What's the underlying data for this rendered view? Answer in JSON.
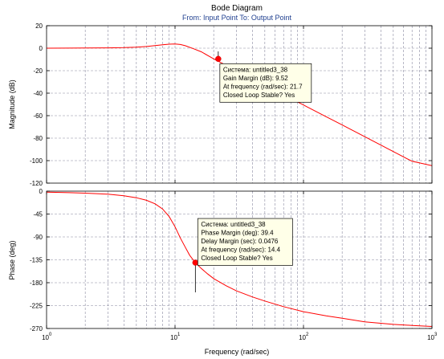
{
  "chart_data": [
    {
      "type": "line",
      "title": "Bode Diagram",
      "subtitle": "From: Input Point  To: Output Point",
      "xlabel": "Frequency  (rad/sec)",
      "ylabel": "Magnitude (dB)",
      "x_scale": "log",
      "xlim": [
        1,
        1000
      ],
      "ylim": [
        -120,
        20
      ],
      "y_ticks": [
        20,
        0,
        -20,
        -40,
        -60,
        -80,
        -100,
        -120
      ],
      "grid": true,
      "series_color": "#ff0000",
      "series": [
        {
          "x": [
            1,
            1.5,
            2,
            3,
            4,
            5,
            6,
            7,
            8,
            9,
            10,
            11,
            12,
            14,
            16,
            20,
            25,
            30,
            40,
            50,
            70,
            100,
            150,
            200,
            300,
            500,
            700,
            1000
          ],
          "y": [
            0,
            0.1,
            0.2,
            0.3,
            0.5,
            0.9,
            1.5,
            2.3,
            3.1,
            3.6,
            3.8,
            3.3,
            2.2,
            -0.6,
            -3.2,
            -9.5,
            -15.2,
            -19.9,
            -27.2,
            -32.8,
            -41.4,
            -50.5,
            -60.9,
            -68.3,
            -78.7,
            -91.9,
            -100.6,
            -104.5
          ]
        }
      ],
      "annotation": {
        "x": 21.7,
        "y": -9.5,
        "lines": [
          "Система: untitled3_38",
          "Gain Margin (dB): 9.52",
          "At frequency (rad/sec): 21.7",
          "Closed Loop Stable? Yes"
        ]
      }
    },
    {
      "type": "line",
      "xlabel": "Frequency  (rad/sec)",
      "ylabel": "Phase (deg)",
      "x_scale": "log",
      "xlim": [
        1,
        1000
      ],
      "ylim": [
        -270,
        0
      ],
      "y_ticks": [
        0,
        -45,
        -90,
        -135,
        -180,
        -225,
        -270
      ],
      "x_tick_labels": [
        "10",
        "0",
        "10",
        "1",
        "10",
        "2",
        "10",
        "3"
      ],
      "grid": true,
      "series_color": "#ff0000",
      "series": [
        {
          "x": [
            1,
            1.5,
            2,
            3,
            4,
            5,
            6,
            7,
            8,
            9,
            10,
            11,
            12,
            13,
            14.4,
            16,
            18,
            20,
            25,
            30,
            40,
            50,
            70,
            100,
            150,
            200,
            300,
            500,
            700,
            1000
          ],
          "y": [
            -2,
            -3,
            -4,
            -6,
            -9,
            -13,
            -18,
            -25,
            -35,
            -50,
            -70,
            -92,
            -110,
            -126,
            -140.6,
            -152,
            -163,
            -172,
            -186,
            -196,
            -208,
            -216,
            -227,
            -237,
            -245,
            -250,
            -257,
            -262,
            -264,
            -266
          ]
        }
      ],
      "annotation": {
        "x": 14.4,
        "y": -140.6,
        "lines": [
          "Система: untitled3_38",
          "Phase Margin (deg): 39.4",
          "Delay Margin (sec): 0.0476",
          "At frequency (rad/sec): 14.4",
          "Closed Loop Stable? Yes"
        ]
      }
    }
  ]
}
